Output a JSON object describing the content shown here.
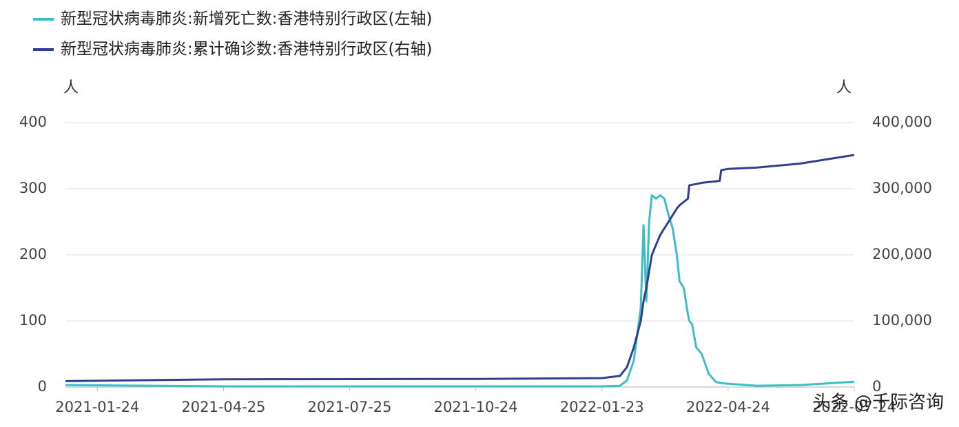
{
  "chart_data": {
    "type": "line",
    "y_label": "人",
    "y2_label": "人",
    "x": [
      "2021-01-01",
      "2021-04-25",
      "2021-07-25",
      "2021-10-24",
      "2022-01-23",
      "2022-02-05",
      "2022-02-10",
      "2022-02-15",
      "2022-02-20",
      "2022-02-22",
      "2022-02-24",
      "2022-02-26",
      "2022-02-28",
      "2022-03-03",
      "2022-03-06",
      "2022-03-09",
      "2022-03-12",
      "2022-03-15",
      "2022-03-18",
      "2022-03-20",
      "2022-03-23",
      "2022-03-26",
      "2022-03-27",
      "2022-03-29",
      "2022-04-01",
      "2022-04-05",
      "2022-04-10",
      "2022-04-15",
      "2022-04-18",
      "2022-04-19",
      "2022-04-24",
      "2022-05-15",
      "2022-06-15",
      "2022-07-24"
    ],
    "xlim": [
      "2021-01-01",
      "2022-07-24"
    ],
    "xticks": [
      "2021-01-24",
      "2021-04-25",
      "2021-07-25",
      "2021-10-24",
      "2022-01-23",
      "2022-04-24",
      "2022-07-24"
    ],
    "ylim": [
      0,
      400
    ],
    "yticks": [
      0,
      100,
      200,
      300,
      400
    ],
    "y2lim": [
      0,
      400000
    ],
    "y2ticks": [
      0,
      {
        "value": 100000,
        "label": "100,000"
      },
      {
        "value": 200000,
        "label": "200,000"
      },
      {
        "value": 300000,
        "label": "300,000"
      },
      {
        "value": 400000,
        "label": "400,000"
      }
    ],
    "grid": true,
    "legend": "top-left",
    "series": [
      {
        "name": "新型冠状病毒肺炎:新增死亡数:香港特别行政区(左轴)",
        "color": "#3bbfc4",
        "axis": "y",
        "values": [
          3,
          1,
          1,
          1,
          1,
          2,
          10,
          40,
          120,
          245,
          130,
          250,
          290,
          285,
          290,
          285,
          260,
          240,
          200,
          160,
          150,
          110,
          100,
          95,
          60,
          50,
          20,
          8,
          6,
          6,
          5,
          2,
          3,
          8
        ]
      },
      {
        "name": "新型冠状病毒肺炎:累计确诊数:香港特别行政区(右轴)",
        "color": "#2f3f8f",
        "axis": "y2",
        "values": [
          9000,
          11800,
          12000,
          12300,
          13500,
          17000,
          30000,
          60000,
          100000,
          130000,
          150000,
          175000,
          200000,
          215000,
          230000,
          240000,
          250000,
          260000,
          270000,
          275000,
          280000,
          285000,
          305000,
          306000,
          307000,
          309000,
          310000,
          311000,
          312000,
          328000,
          330000,
          332000,
          338000,
          351000
        ]
      }
    ]
  },
  "watermark": "头条 @千际咨询"
}
